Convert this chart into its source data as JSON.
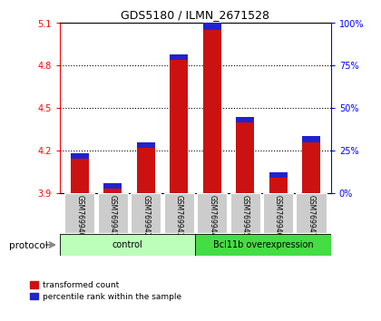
{
  "title": "GDS5180 / ILMN_2671528",
  "samples": [
    "GSM769940",
    "GSM769941",
    "GSM769942",
    "GSM769943",
    "GSM769944",
    "GSM769945",
    "GSM769946",
    "GSM769947"
  ],
  "red_tops": [
    4.18,
    3.97,
    4.26,
    4.88,
    5.1,
    4.44,
    4.05,
    4.3
  ],
  "blue_heights": [
    0.04,
    0.04,
    0.04,
    0.04,
    0.05,
    0.04,
    0.04,
    0.04
  ],
  "base": 3.9,
  "ylim_left": [
    3.9,
    5.1
  ],
  "yticks_left": [
    3.9,
    4.2,
    4.5,
    4.8,
    5.1
  ],
  "ylim_right": [
    0,
    100
  ],
  "yticks_right": [
    0,
    25,
    50,
    75,
    100
  ],
  "bar_color_red": "#cc1111",
  "bar_color_blue": "#2222cc",
  "control_label": "control",
  "overexpression_label": "Bcl11b overexpression",
  "protocol_label": "protocol",
  "legend_red": "transformed count",
  "legend_blue": "percentile rank within the sample",
  "control_color": "#bbffbb",
  "overexpression_color": "#44dd44",
  "label_bg_color": "#cccccc",
  "bar_width": 0.55
}
